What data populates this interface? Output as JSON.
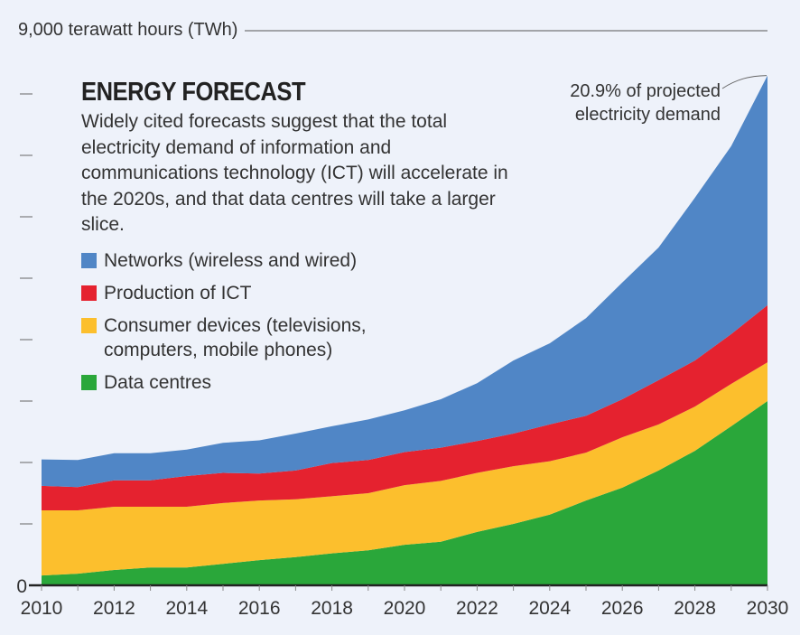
{
  "chart_data": {
    "type": "area",
    "stacked": true,
    "title": "ENERGY FORECAST",
    "subtitle": "Widely cited forecasts suggest that the total electricity demand of information and communications technology (ICT) will accelerate in the 2020s, and that data centres will take a larger slice.",
    "ylabel": "9,000 terawatt hours (TWh)",
    "y_tick_labels": [
      "0"
    ],
    "ylim": [
      0,
      9000
    ],
    "y_ticks": [
      0,
      1000,
      2000,
      3000,
      4000,
      5000,
      6000,
      7000,
      8000,
      9000
    ],
    "xlim": [
      2010,
      2030
    ],
    "x": [
      2010,
      2011,
      2012,
      2013,
      2014,
      2015,
      2016,
      2017,
      2018,
      2019,
      2020,
      2021,
      2022,
      2023,
      2024,
      2025,
      2026,
      2027,
      2028,
      2029,
      2030
    ],
    "x_tick_labels": [
      "2010",
      "2012",
      "2014",
      "2016",
      "2018",
      "2020",
      "2022",
      "2024",
      "2026",
      "2028",
      "2030"
    ],
    "legend_placement": "top-left",
    "annotation": "20.9% of projected electricity demand",
    "annotation_lines": [
      "20.9% of projected",
      "electricity demand"
    ],
    "series": [
      {
        "name": "Data centres",
        "color": "#2aa73a",
        "values": [
          160,
          190,
          250,
          290,
          290,
          350,
          410,
          460,
          520,
          570,
          660,
          710,
          870,
          1000,
          1150,
          1380,
          1590,
          1870,
          2190,
          2590,
          3000
        ]
      },
      {
        "name": "Consumer devices (televisions, computers, mobile phones)",
        "color": "#fcbf2d",
        "values": [
          1060,
          1030,
          1030,
          990,
          990,
          990,
          970,
          940,
          930,
          930,
          970,
          990,
          960,
          940,
          870,
          780,
          820,
          750,
          720,
          690,
          630
        ]
      },
      {
        "name": "Production of ICT",
        "color": "#e5222f",
        "values": [
          400,
          380,
          430,
          430,
          500,
          490,
          440,
          470,
          540,
          540,
          540,
          540,
          520,
          530,
          600,
          600,
          620,
          720,
          750,
          810,
          930
        ]
      },
      {
        "name": "Networks (wireless and wired)",
        "color": "#5086c6",
        "values": [
          430,
          440,
          440,
          440,
          430,
          490,
          540,
          600,
          600,
          660,
          680,
          790,
          940,
          1190,
          1320,
          1590,
          1900,
          2160,
          2650,
          3060,
          3740
        ]
      }
    ],
    "legend_order": [
      {
        "label": "Networks (wireless and wired)",
        "color": "#5086c6"
      },
      {
        "label": "Production of ICT",
        "color": "#e5222f"
      },
      {
        "label": "Consumer devices (televisions, computers, mobile phones)",
        "color": "#fcbf2d",
        "lines": [
          "Consumer devices (televisions,",
          "computers, mobile phones)"
        ]
      },
      {
        "label": "Data centres",
        "color": "#2aa73a"
      }
    ]
  }
}
